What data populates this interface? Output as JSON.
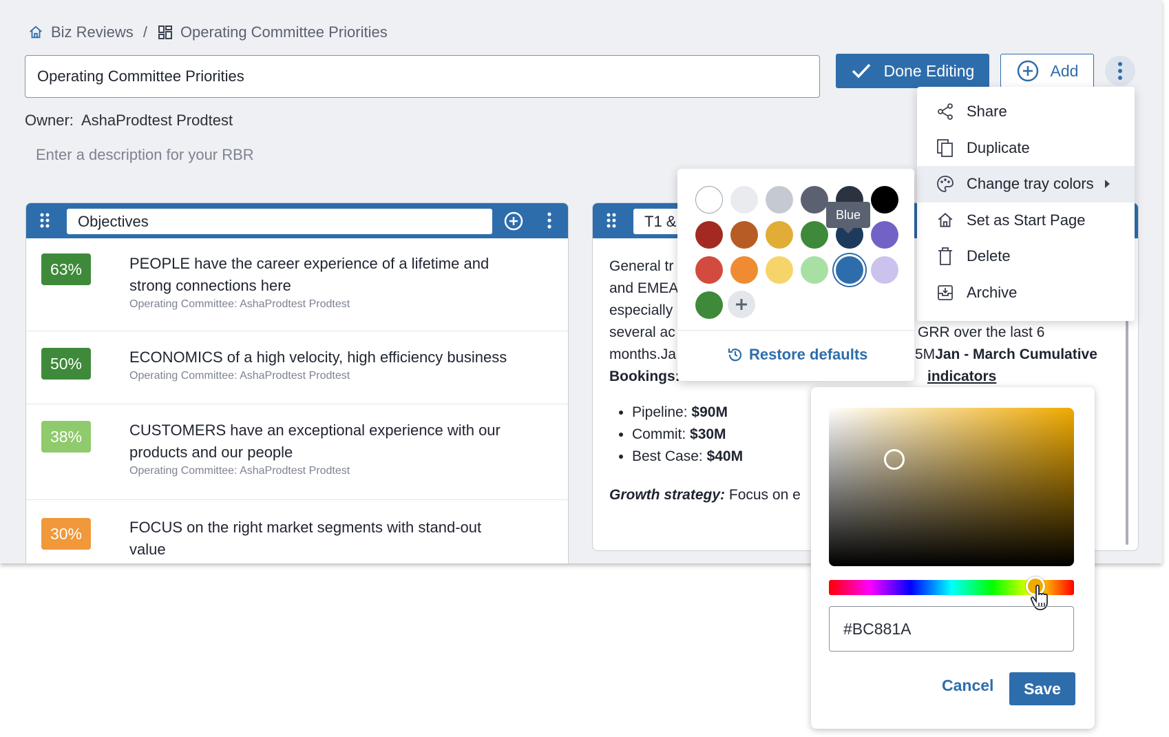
{
  "breadcrumb": {
    "home": "Biz Reviews",
    "separator": "/",
    "current": "Operating Committee Priorities"
  },
  "title_input": "Operating Committee Priorities",
  "toolbar": {
    "done": "Done Editing",
    "add": "Add"
  },
  "owner": {
    "label": "Owner:",
    "name": "AshaProdtest Prodtest"
  },
  "description_placeholder": "Enter a description for your RBR",
  "tray1": {
    "name": "Objectives",
    "rows": [
      {
        "pct": "63%",
        "color": "#3e8a3a",
        "title": "PEOPLE have the career experience of a lifetime and strong connections here",
        "sub": "Operating Committee: AshaProdtest Prodtest"
      },
      {
        "pct": "50%",
        "color": "#3e8a3a",
        "title": "ECONOMICS of a high velocity, high efficiency business",
        "sub": "Operating Committee: AshaProdtest Prodtest"
      },
      {
        "pct": "38%",
        "color": "#8fca6c",
        "title": "CUSTOMERS have an exceptional experience with our products and our people",
        "sub": "Operating Committee: AshaProdtest Prodtest"
      },
      {
        "pct": "30%",
        "color": "#f0983a",
        "title": "FOCUS on the right market segments with stand-out value",
        "sub": ""
      }
    ]
  },
  "tray2": {
    "name": "T1 &",
    "lines": [
      "General tr",
      "and EMEA",
      "especially",
      "several ac",
      "months.Ja",
      "Bookings:"
    ],
    "grr": "GRR over the last 6",
    "mline": "5M",
    "mline_bold": "Jan - March Cumulative",
    "indicators": "indicators",
    "bullets": [
      {
        "label": "Pipeline:",
        "value": "$90M"
      },
      {
        "label": "Commit:",
        "value": "$30M"
      },
      {
        "label": "Best Case:",
        "value": "$40M"
      }
    ],
    "growth_label": "Growth strategy:",
    "growth_text": "Focus on e"
  },
  "menu": {
    "items": [
      "Share",
      "Duplicate",
      "Change tray colors",
      "Set as Start Page",
      "Delete",
      "Archive"
    ]
  },
  "palette": {
    "colors": [
      "#ffffff",
      "#e9ebef",
      "#c5c9d2",
      "#5b6170",
      "#2c3340",
      "#000000",
      "#a32a22",
      "#b85c26",
      "#e1ad36",
      "#3e8a3a",
      "#1d3a5c",
      "#7362c5",
      "#d34b3e",
      "#ef8c33",
      "#f6d46a",
      "#a8e0a4",
      "#2e6dab",
      "#cbc3ee",
      "#3e8a3a"
    ],
    "selected": "#2e6dab",
    "tooltip": "Blue",
    "restore": "Restore defaults"
  },
  "picker": {
    "hex": "#BC881A",
    "cancel": "Cancel",
    "save": "Save"
  }
}
